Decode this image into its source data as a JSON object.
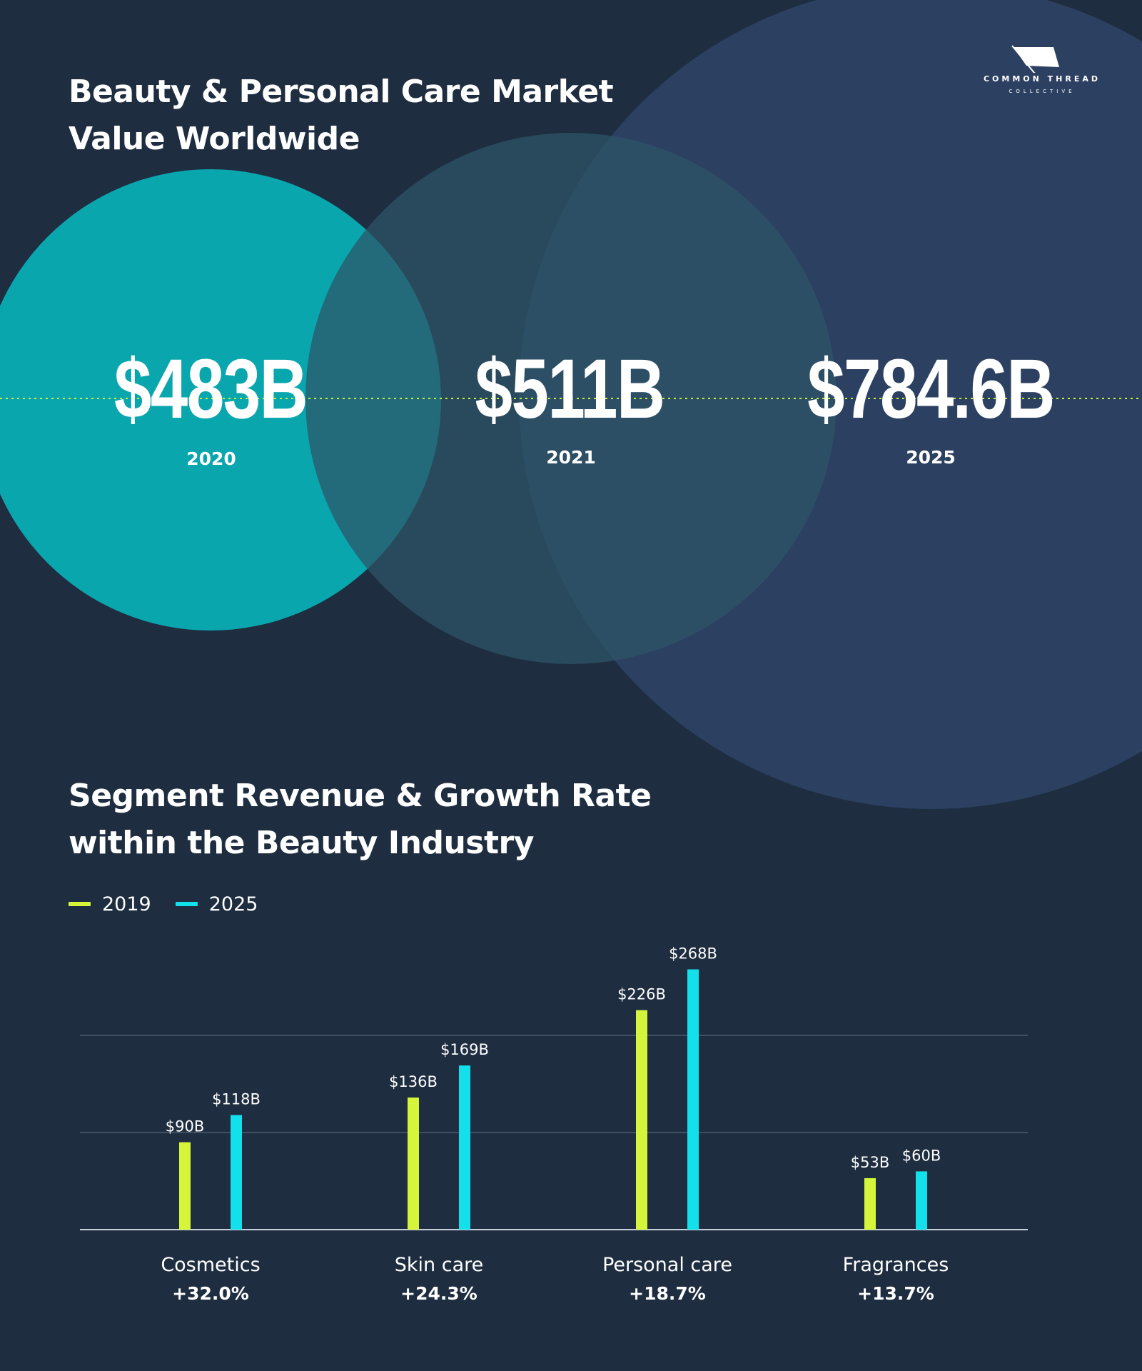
{
  "hero": {
    "title_line1": "Beauty & Personal Care Market",
    "title_line2": "Value Worldwide",
    "items": [
      {
        "value": "$483B",
        "year": "2020"
      },
      {
        "value": "$511B",
        "year": "2021"
      },
      {
        "value": "$784.6B",
        "year": "2025"
      }
    ],
    "colors": {
      "circle_2020": "#0aa6ae",
      "circle_2021": "#2e5468",
      "circle_2025": "#2c4061",
      "dotted_line": "#c8f23a"
    }
  },
  "logo": {
    "line1": "COMMON THREAD",
    "line2": "COLLECTIVE",
    "icon": "flag-icon"
  },
  "segments": {
    "title_line1": "Segment Revenue & Growth Rate",
    "title_line2": "within the Beauty Industry",
    "legend": [
      {
        "label": "2019",
        "color": "#d4f53a"
      },
      {
        "label": "2025",
        "color": "#12e0ea"
      }
    ]
  },
  "chart_data": {
    "type": "bar",
    "categories": [
      "Cosmetics",
      "Skin care",
      "Personal care",
      "Fragrances"
    ],
    "growth": [
      "+32.0%",
      "+24.3%",
      "+18.7%",
      "+13.7%"
    ],
    "series": [
      {
        "name": "2019",
        "values": [
          90,
          136,
          226,
          53
        ],
        "labels": [
          "$90B",
          "$136B",
          "$226B",
          "$53B"
        ],
        "color": "#d4f53a"
      },
      {
        "name": "2025",
        "values": [
          118,
          169,
          268,
          60
        ],
        "labels": [
          "$118B",
          "$169B",
          "$268B",
          "$60B"
        ],
        "color": "#12e0ea"
      }
    ],
    "ylim": [
      0,
      300
    ],
    "gridlines": [
      0,
      100,
      200
    ],
    "title": "Segment Revenue & Growth Rate within the Beauty Industry",
    "xlabel": "",
    "ylabel": "",
    "grid": true,
    "legend_position": "top-left"
  }
}
